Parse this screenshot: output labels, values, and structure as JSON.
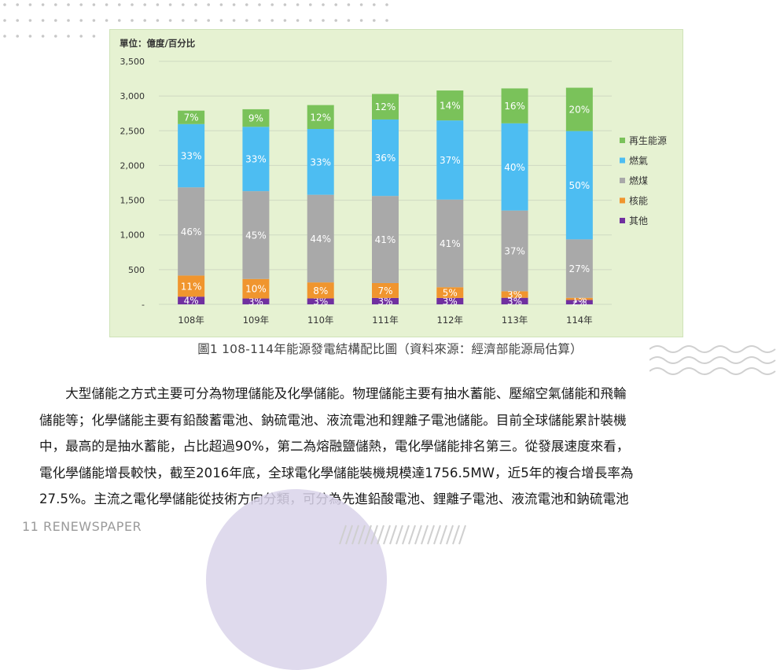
{
  "chart_data": {
    "type": "bar",
    "stacked": true,
    "unit_label": "單位：億度/百分比",
    "categories": [
      "108年",
      "109年",
      "110年",
      "111年",
      "112年",
      "113年",
      "114年"
    ],
    "totals": [
      2790,
      2810,
      2870,
      3030,
      3080,
      3110,
      3120
    ],
    "ylim": [
      0,
      3500
    ],
    "yticks": [
      0,
      500,
      1000,
      1500,
      2000,
      2500,
      3000,
      3500
    ],
    "ytick_labels": [
      "-",
      "500",
      "1,000",
      "1,500",
      "2,000",
      "2,500",
      "3,000",
      "3,500"
    ],
    "grid": true,
    "legend_position": "right",
    "series": [
      {
        "name": "其他",
        "color": "#7030a0",
        "percent": [
          4,
          3,
          3,
          3,
          3,
          3,
          2
        ],
        "labels": [
          "4%",
          "3%",
          "3%",
          "3%",
          "3%",
          "3%",
          "2%"
        ]
      },
      {
        "name": "核能",
        "color": "#f0952e",
        "percent": [
          11,
          10,
          8,
          7,
          5,
          3,
          1
        ],
        "labels": [
          "11%",
          "10%",
          "8%",
          "7%",
          "5%",
          "3%",
          "1%"
        ]
      },
      {
        "name": "燃煤",
        "color": "#a9a9a9",
        "percent": [
          46,
          45,
          44,
          41,
          41,
          37,
          27
        ],
        "labels": [
          "46%",
          "45%",
          "44%",
          "41%",
          "41%",
          "37%",
          "27%"
        ]
      },
      {
        "name": "燃氣",
        "color": "#4dbdf2",
        "percent": [
          33,
          33,
          33,
          36,
          37,
          40,
          50
        ],
        "labels": [
          "33%",
          "33%",
          "33%",
          "36%",
          "37%",
          "40%",
          "50%"
        ]
      },
      {
        "name": "再生能源",
        "color": "#7ac25a",
        "percent": [
          7,
          9,
          12,
          12,
          14,
          16,
          20
        ],
        "labels": [
          "7%",
          "9%",
          "12%",
          "12%",
          "14%",
          "16%",
          "20%"
        ]
      }
    ],
    "legend_order": [
      "再生能源",
      "燃氣",
      "燃煤",
      "核能",
      "其他"
    ]
  },
  "caption": "圖1  108-114年能源發電結構配比圖（資料來源：經濟部能源局估算）",
  "body_lines": [
    "　　大型儲能之方式主要可分為物理儲能及化學儲能。物理儲能主要有抽水蓄能、壓縮空氣儲能和飛輪",
    "儲能等；化學儲能主要有鉛酸蓄電池、鈉硫電池、液流電池和鋰離子電池儲能。目前全球儲能累計裝機",
    "中，最高的是抽水蓄能，占比超過90%，第二為熔融鹽儲熱，電化學儲能排名第三。從發展速度來看，",
    "電化學儲能增長較快，截至2016年底，全球電化學儲能裝機規模達1756.5MW，近5年的複合增長率為",
    "27.5%。主流之電化學儲能從技術方向分類，可分為先進鉛酸電池、鋰離子電池、液流電池和鈉硫電池"
  ],
  "footer": "11 RENEWSPAPER"
}
